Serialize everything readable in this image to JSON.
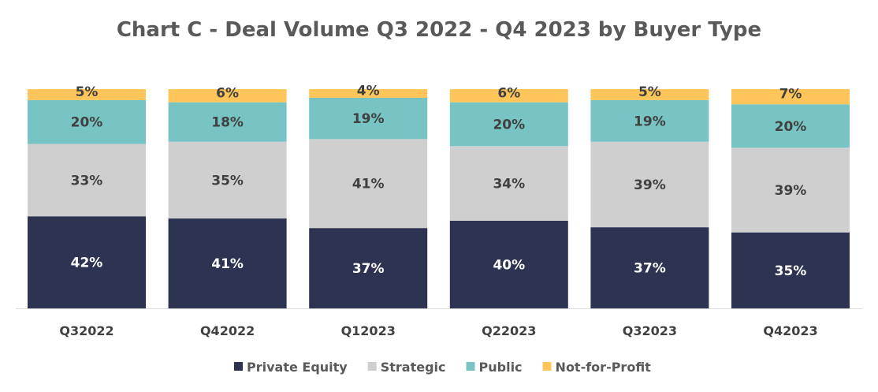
{
  "chart_data": {
    "type": "bar",
    "stacked": true,
    "title": "Chart C - Deal Volume Q3 2022 - Q4 2023 by Buyer Type",
    "xlabel": "",
    "ylabel": "",
    "ylim": [
      0,
      100
    ],
    "grid": false,
    "legend_position": "bottom",
    "categories": [
      "Q32022",
      "Q42022",
      "Q12023",
      "Q22023",
      "Q32023",
      "Q42023"
    ],
    "series": [
      {
        "name": "Private Equity",
        "color": "#2e3352",
        "label_color": "#ffffff",
        "values": [
          42,
          41,
          37,
          40,
          37,
          35
        ]
      },
      {
        "name": "Strategic",
        "color": "#d0cfd0",
        "label_color": "#404040",
        "values": [
          33,
          35,
          41,
          34,
          39,
          39
        ]
      },
      {
        "name": "Public",
        "color": "#78c3c3",
        "label_color": "#404040",
        "values": [
          20,
          18,
          19,
          20,
          19,
          20
        ]
      },
      {
        "name": "Not-for-Profit",
        "color": "#fdc55a",
        "label_color": "#404040",
        "values": [
          5,
          6,
          4,
          6,
          5,
          7
        ]
      }
    ],
    "value_suffix": "%"
  }
}
